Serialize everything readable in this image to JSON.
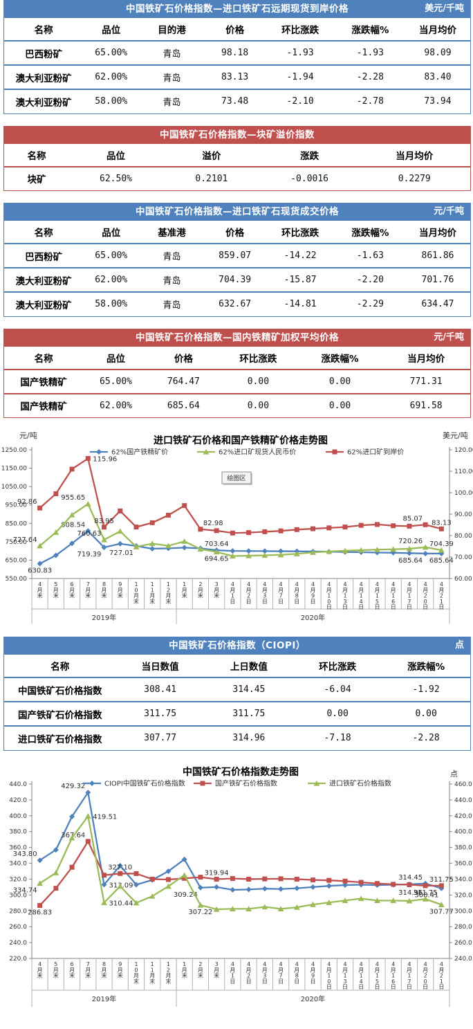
{
  "tables": [
    {
      "theme": "blue",
      "title": "中国铁矿石价格指数—进口铁矿石远期现货到岸价格",
      "unit": "美元/千吨",
      "headers": [
        "名称",
        "品位",
        "目的港",
        "价格",
        "环比涨跌",
        "涨跌幅%",
        "当月均价"
      ],
      "rows": [
        [
          "巴西粉矿",
          "65.00%",
          "青岛",
          "98.18",
          "-1.93",
          "-1.93",
          "98.09"
        ],
        [
          "澳大利亚粉矿",
          "62.00%",
          "青岛",
          "83.13",
          "-1.94",
          "-2.28",
          "83.40"
        ],
        [
          "澳大利亚粉矿",
          "58.00%",
          "青岛",
          "73.48",
          "-2.10",
          "-2.78",
          "73.94"
        ]
      ]
    },
    {
      "theme": "red",
      "title": "中国铁矿石价格指数—块矿溢价指数",
      "unit": "",
      "headers": [
        "名称",
        "品位",
        "溢价",
        "涨跌",
        "当月均价"
      ],
      "rows": [
        [
          "块矿",
          "62.50%",
          "0.2101",
          "-0.0016",
          "0.2279"
        ]
      ]
    },
    {
      "theme": "blue",
      "title": "中国铁矿石价格指数—进口铁矿石现货成交价格",
      "unit": "元/千吨",
      "headers": [
        "名称",
        "品位",
        "基准港",
        "价格",
        "环比涨跌",
        "涨跌幅%",
        "当月均价"
      ],
      "rows": [
        [
          "巴西粉矿",
          "65.00%",
          "青岛",
          "859.07",
          "-14.22",
          "-1.63",
          "861.86"
        ],
        [
          "澳大利亚粉矿",
          "62.00%",
          "青岛",
          "704.39",
          "-15.87",
          "-2.20",
          "701.76"
        ],
        [
          "澳大利亚粉矿",
          "58.00%",
          "青岛",
          "632.67",
          "-14.81",
          "-2.29",
          "634.47"
        ]
      ]
    },
    {
      "theme": "red",
      "title": "中国铁矿石价格指数—国内铁精矿加权平均价格",
      "unit": "元/千吨",
      "headers": [
        "名称",
        "品位",
        "价格",
        "环比涨跌",
        "涨跌幅%",
        "当月均价"
      ],
      "rows": [
        [
          "国产铁精矿",
          "65.00%",
          "764.47",
          "0.00",
          "0.00",
          "771.31"
        ],
        [
          "国产铁精矿",
          "62.00%",
          "685.64",
          "0.00",
          "0.00",
          "691.58"
        ]
      ]
    },
    {
      "theme": "blue",
      "title": "中国铁矿石价格指数（CIOPI）",
      "unit": "点",
      "headers": [
        "名称",
        "当日数值",
        "上日数值",
        "环比涨跌",
        "涨跌幅%"
      ],
      "rows": [
        [
          "中国铁矿石价格指数",
          "308.41",
          "314.45",
          "-6.04",
          "-1.92"
        ],
        [
          "国产铁矿石价格指数",
          "311.75",
          "311.75",
          "0.00",
          "0.00"
        ],
        [
          "进口铁矿石价格指数",
          "307.77",
          "314.96",
          "-7.18",
          "-2.28"
        ]
      ]
    }
  ],
  "chart_data": [
    {
      "type": "line",
      "title": "进口铁矿石价格和国产铁精矿价格走势图",
      "plot_area_tooltip": "绘图区",
      "left_axis": {
        "title": "元/吨",
        "min": 550,
        "max": 1250,
        "step": 100,
        "decimals": 2
      },
      "right_axis": {
        "title": "美元/吨",
        "min": 60,
        "max": 120,
        "step": 10,
        "decimals": 2
      },
      "categories": [
        "4月末",
        "5月末",
        "6月末",
        "7月末",
        "8月末",
        "9月末",
        "10月末",
        "11月末",
        "12月末",
        "1月末",
        "2月末",
        "3月末",
        "4月1日",
        "4月2日",
        "4月3日",
        "4月7日",
        "4月8日",
        "4月9日",
        "4月10日",
        "4月13日",
        "4月14日",
        "4月15日",
        "4月16日",
        "4月17日",
        "4月20日",
        "4月21日"
      ],
      "year_groups": [
        {
          "label": "2019年",
          "count": 9
        },
        {
          "label": "2020年",
          "count": 17
        }
      ],
      "legend_position": "top",
      "grid": false,
      "series": [
        {
          "name": "62%国产铁精矿价",
          "color": "#4f81bd",
          "marker": "diamond",
          "axis": "left",
          "values": [
            630.83,
            676,
            741,
            808.54,
            719.39,
            739,
            727.01,
            712,
            714,
            718,
            714,
            703.64,
            700,
            699.5,
            699,
            698.5,
            698,
            697,
            696,
            694,
            693,
            691,
            690,
            688,
            685.64,
            685.64
          ],
          "point_labels": [
            {
              "i": 0,
              "t": "630.83",
              "pos": "below"
            },
            {
              "i": 3,
              "t": "808.54",
              "pos": "above-left"
            },
            {
              "i": 4,
              "t": "719.39",
              "pos": "below-left"
            },
            {
              "i": 6,
              "t": "727.01",
              "pos": "below-left"
            },
            {
              "i": 11,
              "t": "703.64",
              "pos": "above"
            },
            {
              "i": 24,
              "t": "685.64",
              "pos": "below-left"
            },
            {
              "i": 25,
              "t": "685.64",
              "pos": "below"
            }
          ]
        },
        {
          "name": "62%进口矿现货人民币价",
          "color": "#9bbb59",
          "marker": "triangle",
          "axis": "left",
          "values": [
            727.64,
            801,
            896,
            955.65,
            760.63,
            807,
            722,
            740,
            728,
            752,
            710,
            694.65,
            672,
            674,
            676,
            679,
            684,
            692,
            697,
            701,
            704,
            707,
            709,
            712,
            720.26,
            704.39
          ],
          "point_labels": [
            {
              "i": 0,
              "t": "727.64",
              "pos": "above-left"
            },
            {
              "i": 3,
              "t": "955.65",
              "pos": "above-left"
            },
            {
              "i": 4,
              "t": "760.63",
              "pos": "above-left"
            },
            {
              "i": 11,
              "t": "694.65",
              "pos": "below"
            },
            {
              "i": 24,
              "t": "720.26",
              "pos": "above-left"
            },
            {
              "i": 25,
              "t": "704.39",
              "pos": "above"
            }
          ]
        },
        {
          "name": "62%进口矿到岸价",
          "color": "#c0504d",
          "marker": "square",
          "axis": "right",
          "values": [
            92.86,
            99.5,
            111,
            115.96,
            83.95,
            91.5,
            84,
            86,
            89.5,
            94,
            82.98,
            82.3,
            81.2,
            81.4,
            81.8,
            82.2,
            82.8,
            83.2,
            83.6,
            84,
            84.8,
            85.2,
            84.6,
            84.4,
            85.07,
            83.13
          ],
          "point_labels": [
            {
              "i": 0,
              "t": "92.86",
              "pos": "above-left"
            },
            {
              "i": 3,
              "t": "115.96",
              "pos": "right"
            },
            {
              "i": 4,
              "t": "83.95",
              "pos": "above"
            },
            {
              "i": 10,
              "t": "82.98",
              "pos": "above-right"
            },
            {
              "i": 24,
              "t": "85.07",
              "pos": "above-left"
            },
            {
              "i": 25,
              "t": "83.13",
              "pos": "above"
            }
          ]
        }
      ]
    },
    {
      "type": "line",
      "title": "中国铁矿石价格指数走势图",
      "plot_area_tooltip": "",
      "left_axis": {
        "title": "",
        "min": 220,
        "max": 440,
        "step": 20,
        "decimals": 1
      },
      "right_axis": {
        "title": "点",
        "min": 240,
        "max": 460,
        "step": 20,
        "decimals": 1
      },
      "categories": [
        "4月末",
        "5月末",
        "6月末",
        "7月末",
        "8月末",
        "9月末",
        "10月末",
        "11月末",
        "12月末",
        "1月末",
        "2月末",
        "3月末",
        "4月1日",
        "4月2日",
        "4月3日",
        "4月7日",
        "4月8日",
        "4月9日",
        "4月10日",
        "4月13日",
        "4月14日",
        "4月15日",
        "4月16日",
        "4月17日",
        "4月20日",
        "4月21日"
      ],
      "year_groups": [
        {
          "label": "2019年",
          "count": 9
        },
        {
          "label": "2020年",
          "count": 17
        }
      ],
      "legend_position": "top",
      "grid": false,
      "series": [
        {
          "name": "CIOPI中国铁矿石价格指数",
          "color": "#4f81bd",
          "marker": "diamond",
          "axis": "left",
          "values": [
            343.8,
            357,
            399,
            429.32,
            313.09,
            337,
            313,
            319,
            330,
            345,
            309.24,
            310,
            306.5,
            307,
            308,
            307.5,
            308.5,
            310,
            311.5,
            312.5,
            313,
            312.5,
            313,
            313.5,
            314.45,
            308.41
          ],
          "point_labels": [
            {
              "i": 0,
              "t": "343.80",
              "pos": "above-left"
            },
            {
              "i": 3,
              "t": "429.32",
              "pos": "above-left"
            },
            {
              "i": 4,
              "t": "313.09",
              "pos": "right"
            },
            {
              "i": 10,
              "t": "309.24",
              "pos": "below-left"
            },
            {
              "i": 24,
              "t": "314.45",
              "pos": "above-left"
            },
            {
              "i": 25,
              "t": "308.41",
              "pos": "below-left"
            }
          ]
        },
        {
          "name": "国产铁矿石价格指数",
          "color": "#c0504d",
          "marker": "square",
          "axis": "left",
          "values": [
            286.83,
            308.5,
            335,
            367.64,
            325,
            327.1,
            327,
            320,
            319.5,
            321,
            322.5,
            319.94,
            320.8,
            320,
            320.3,
            320.5,
            320,
            319,
            318.5,
            317.5,
            316,
            314.5,
            313.5,
            313,
            311.75,
            311.75
          ],
          "point_labels": [
            {
              "i": 0,
              "t": "286.83",
              "pos": "below"
            },
            {
              "i": 3,
              "t": "367.64",
              "pos": "above-left"
            },
            {
              "i": 5,
              "t": "327.10",
              "pos": "above"
            },
            {
              "i": 11,
              "t": "319.94",
              "pos": "above"
            },
            {
              "i": 24,
              "t": "311.75",
              "pos": "below"
            },
            {
              "i": 25,
              "t": "311.75",
              "pos": "above"
            }
          ]
        },
        {
          "name": "进口铁矿石价格指数",
          "color": "#9bbb59",
          "marker": "triangle",
          "axis": "right",
          "values": [
            334.74,
            348,
            392,
            419.51,
            310.44,
            331,
            310,
            318.5,
            331,
            345,
            307.22,
            302,
            302.5,
            302.5,
            305,
            302.5,
            304.5,
            308,
            310.5,
            313,
            315.5,
            313,
            313,
            312.5,
            314.96,
            307.77
          ],
          "point_labels": [
            {
              "i": 0,
              "t": "334.74",
              "pos": "below-left"
            },
            {
              "i": 3,
              "t": "419.51",
              "pos": "right"
            },
            {
              "i": 4,
              "t": "310.44",
              "pos": "right"
            },
            {
              "i": 10,
              "t": "307.22",
              "pos": "below"
            },
            {
              "i": 24,
              "t": "314.96",
              "pos": "above-left"
            },
            {
              "i": 25,
              "t": "307.77",
              "pos": "below"
            }
          ]
        }
      ]
    }
  ]
}
